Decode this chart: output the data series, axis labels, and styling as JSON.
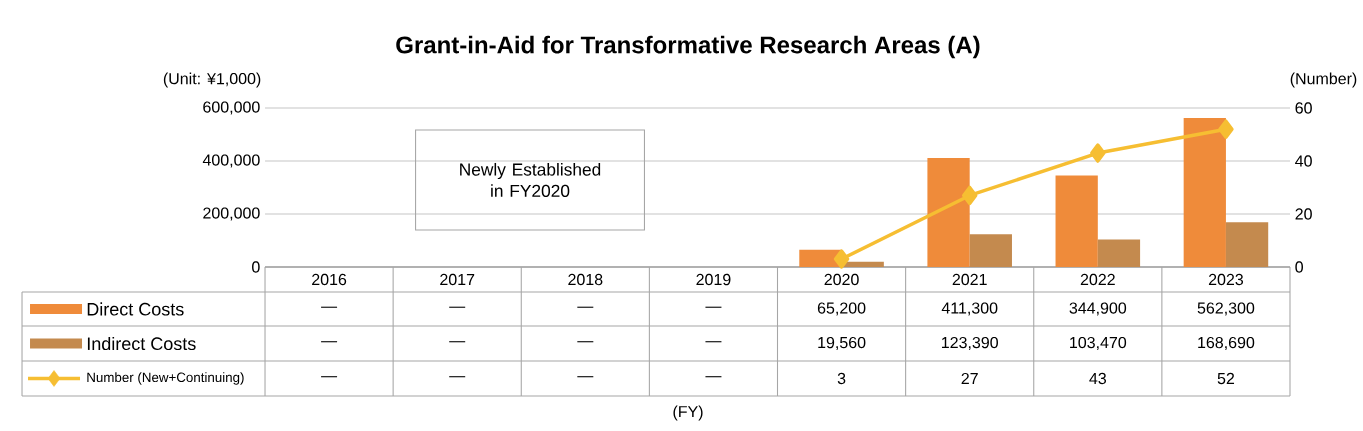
{
  "chart_data": {
    "type": "bar",
    "title": "Grant-in-Aid for Transformative Research Areas (A)",
    "ylabel": "(Unit: ¥1,000)",
    "y2label": "(Number)",
    "categories": [
      "2016",
      "2017",
      "2018",
      "2019",
      "2020",
      "2021",
      "2022",
      "2023"
    ],
    "series": [
      {
        "name": "Direct Costs",
        "color": "#ef8b3a",
        "values": [
          null,
          null,
          null,
          null,
          65200,
          411300,
          344900,
          562300
        ],
        "value_labels": [
          "—",
          "—",
          "—",
          "—",
          "65,200",
          "411,300",
          "344,900",
          "562,300"
        ]
      },
      {
        "name": "Indirect Costs",
        "color": "#c48a4e",
        "values": [
          null,
          null,
          null,
          null,
          19560,
          123390,
          103470,
          168690
        ],
        "value_labels": [
          "—",
          "—",
          "—",
          "—",
          "19,560",
          "123,390",
          "103,470",
          "168,690"
        ]
      },
      {
        "name": "Number (New+Continuing)",
        "type": "line",
        "axis": "y2",
        "color": "#f6be32",
        "marker": "diamond",
        "values": [
          null,
          null,
          null,
          null,
          3,
          27,
          43,
          52
        ],
        "value_labels": [
          "—",
          "—",
          "—",
          "—",
          "3",
          "27",
          "43",
          "52"
        ]
      }
    ],
    "ylim": [
      0,
      600000
    ],
    "yticks": [
      0,
      {
        "value": 200000,
        "label": "200,000"
      },
      {
        "value": 400000,
        "label": "400,000"
      },
      {
        "value": 600000,
        "label": "600,000"
      }
    ],
    "y2lim": [
      0,
      60
    ],
    "y2ticks": [
      0,
      20,
      40,
      60
    ],
    "grid": "y",
    "legend": "bottom",
    "annotations": [
      "Newly Established in FY2020",
      "(FY)"
    ]
  }
}
